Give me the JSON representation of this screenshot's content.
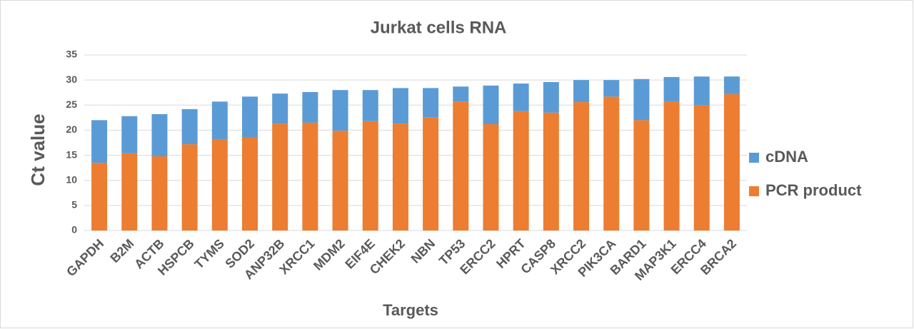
{
  "chart_data": {
    "type": "stacked_bar",
    "title": "Jurkat cells RNA",
    "x_label": "Targets",
    "y_label": "Ct value",
    "categories": [
      "GAPDH",
      "B2M",
      "ACTB",
      "HSPCB",
      "TYMS",
      "SOD2",
      "ANP32B",
      "XRCC1",
      "MDM2",
      "EIF4E",
      "CHEK2",
      "NBN",
      "TP53",
      "ERCC2",
      "HPRT",
      "CASP8",
      "XRCC2",
      "PIK3CA",
      "BARD1",
      "MAP3K1",
      "ERCC4",
      "BRCA2"
    ],
    "series": [
      {
        "name": "cDNA",
        "color": "#5b9bd5",
        "values": [
          8.5,
          7.4,
          8.4,
          7.0,
          7.5,
          8.2,
          6.0,
          6.1,
          8.1,
          6.2,
          7.1,
          5.8,
          3.0,
          7.7,
          5.5,
          6.1,
          4.4,
          3.3,
          8.2,
          4.9,
          5.7,
          3.5
        ]
      },
      {
        "name": "PCR product",
        "color": "#ed7d31",
        "values": [
          13.5,
          15.4,
          14.8,
          17.2,
          18.2,
          18.5,
          21.3,
          21.5,
          19.9,
          21.8,
          21.3,
          22.6,
          25.7,
          21.2,
          23.8,
          23.5,
          25.6,
          26.7,
          22.0,
          25.7,
          25.0,
          27.2
        ]
      }
    ],
    "ylim": [
      0,
      35
    ],
    "yticks": [
      0,
      5,
      10,
      15,
      20,
      25,
      30,
      35
    ],
    "grid": true,
    "legend": "right"
  }
}
